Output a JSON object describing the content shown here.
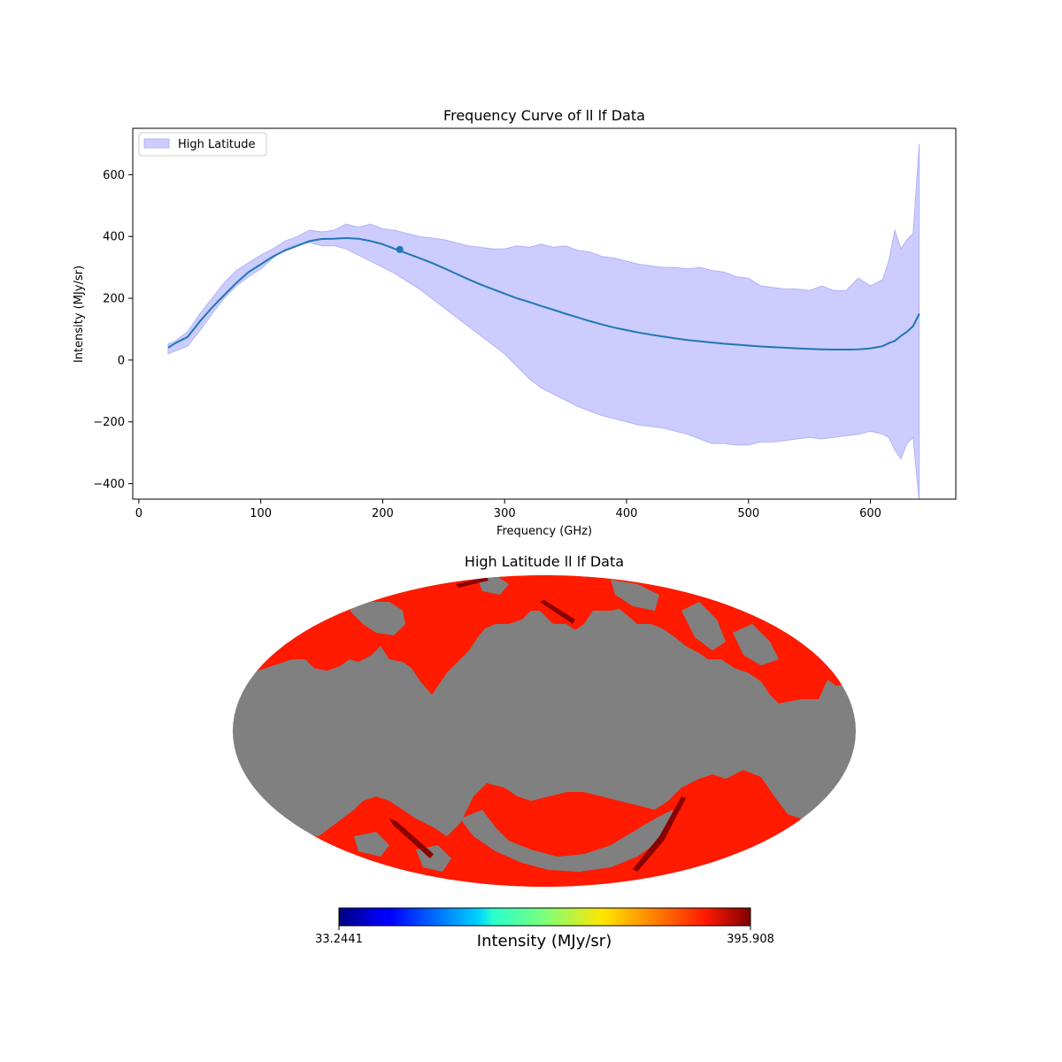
{
  "colors": {
    "band_fill": "#ccccff",
    "band_edge": "#b3b3f5",
    "mean_line": "#1f77b4",
    "map_background": "#808080",
    "map_high": "#ff1a00",
    "map_dark": "#8b0000"
  },
  "chart_data": [
    {
      "type": "area",
      "title": "Frequency Curve of ll lf Data",
      "xlabel": "Frequency (GHz)",
      "ylabel": "Intensity (MJy/sr)",
      "xlim": [
        -5,
        670
      ],
      "ylim": [
        -450,
        750
      ],
      "xticks": [
        0,
        100,
        200,
        300,
        400,
        500,
        600
      ],
      "yticks": [
        -400,
        -200,
        0,
        200,
        400,
        600
      ],
      "xtick_labels": [
        "0",
        "100",
        "200",
        "300",
        "400",
        "500",
        "600"
      ],
      "ytick_labels": [
        "−400",
        "−200",
        "0",
        "200",
        "400",
        "600"
      ],
      "legend": {
        "position": "top-left",
        "entries": [
          "High Latitude"
        ]
      },
      "grid": false,
      "series": [
        {
          "name": "High Latitude",
          "kind": "band",
          "x": [
            24,
            30,
            40,
            50,
            60,
            70,
            80,
            90,
            100,
            110,
            120,
            130,
            140,
            150,
            160,
            170,
            180,
            190,
            200,
            210,
            220,
            230,
            240,
            250,
            260,
            270,
            280,
            290,
            300,
            310,
            320,
            330,
            340,
            350,
            360,
            370,
            380,
            390,
            400,
            410,
            420,
            430,
            440,
            450,
            460,
            470,
            480,
            490,
            500,
            510,
            520,
            530,
            540,
            550,
            560,
            570,
            580,
            590,
            600,
            610,
            615,
            620,
            625,
            630,
            635,
            640
          ],
          "upper": [
            52,
            62,
            92,
            150,
            200,
            250,
            290,
            315,
            340,
            360,
            385,
            400,
            420,
            415,
            420,
            440,
            430,
            440,
            425,
            420,
            410,
            400,
            395,
            390,
            380,
            370,
            365,
            360,
            360,
            370,
            365,
            375,
            365,
            370,
            355,
            350,
            335,
            330,
            320,
            310,
            305,
            300,
            300,
            295,
            300,
            290,
            285,
            270,
            265,
            240,
            235,
            230,
            230,
            225,
            240,
            225,
            225,
            265,
            240,
            260,
            320,
            420,
            360,
            390,
            410,
            700
          ],
          "lower": [
            20,
            30,
            45,
            95,
            150,
            200,
            240,
            270,
            295,
            330,
            360,
            375,
            380,
            370,
            370,
            360,
            340,
            320,
            300,
            280,
            255,
            230,
            200,
            170,
            140,
            110,
            80,
            50,
            20,
            -20,
            -60,
            -90,
            -110,
            -130,
            -150,
            -165,
            -180,
            -190,
            -200,
            -210,
            -215,
            -220,
            -230,
            -240,
            -255,
            -270,
            -270,
            -275,
            -275,
            -265,
            -265,
            -260,
            -255,
            -250,
            -255,
            -250,
            -245,
            -240,
            -230,
            -240,
            -250,
            -290,
            -320,
            -270,
            -250,
            -460
          ]
        },
        {
          "name": "",
          "kind": "line",
          "x": [
            24,
            30,
            40,
            50,
            60,
            70,
            80,
            90,
            100,
            110,
            120,
            130,
            140,
            150,
            160,
            170,
            180,
            190,
            200,
            210,
            220,
            230,
            240,
            250,
            260,
            270,
            280,
            290,
            300,
            310,
            320,
            330,
            340,
            350,
            360,
            370,
            380,
            390,
            400,
            410,
            420,
            430,
            440,
            450,
            460,
            470,
            480,
            490,
            500,
            510,
            520,
            530,
            540,
            550,
            560,
            570,
            580,
            590,
            600,
            610,
            615,
            620,
            625,
            630,
            635,
            640
          ],
          "y": [
            40,
            55,
            75,
            125,
            170,
            210,
            250,
            285,
            310,
            335,
            355,
            370,
            385,
            392,
            393,
            395,
            393,
            385,
            375,
            360,
            345,
            330,
            315,
            298,
            280,
            262,
            245,
            230,
            215,
            200,
            188,
            175,
            163,
            150,
            138,
            126,
            115,
            105,
            97,
            89,
            82,
            76,
            70,
            65,
            61,
            57,
            53,
            50,
            47,
            44,
            42,
            40,
            38,
            36,
            35,
            34,
            34,
            35,
            38,
            45,
            55,
            62,
            78,
            92,
            110,
            150
          ]
        }
      ],
      "marker": {
        "x": 214,
        "y": 358
      }
    },
    {
      "type": "heatmap",
      "title": "High Latitude ll lf Data",
      "projection": "mollweide",
      "colorbar": {
        "colormap": "jet",
        "min_label": "33.2441",
        "max_label": "395.908",
        "label": "Intensity (MJy/sr)"
      }
    }
  ]
}
